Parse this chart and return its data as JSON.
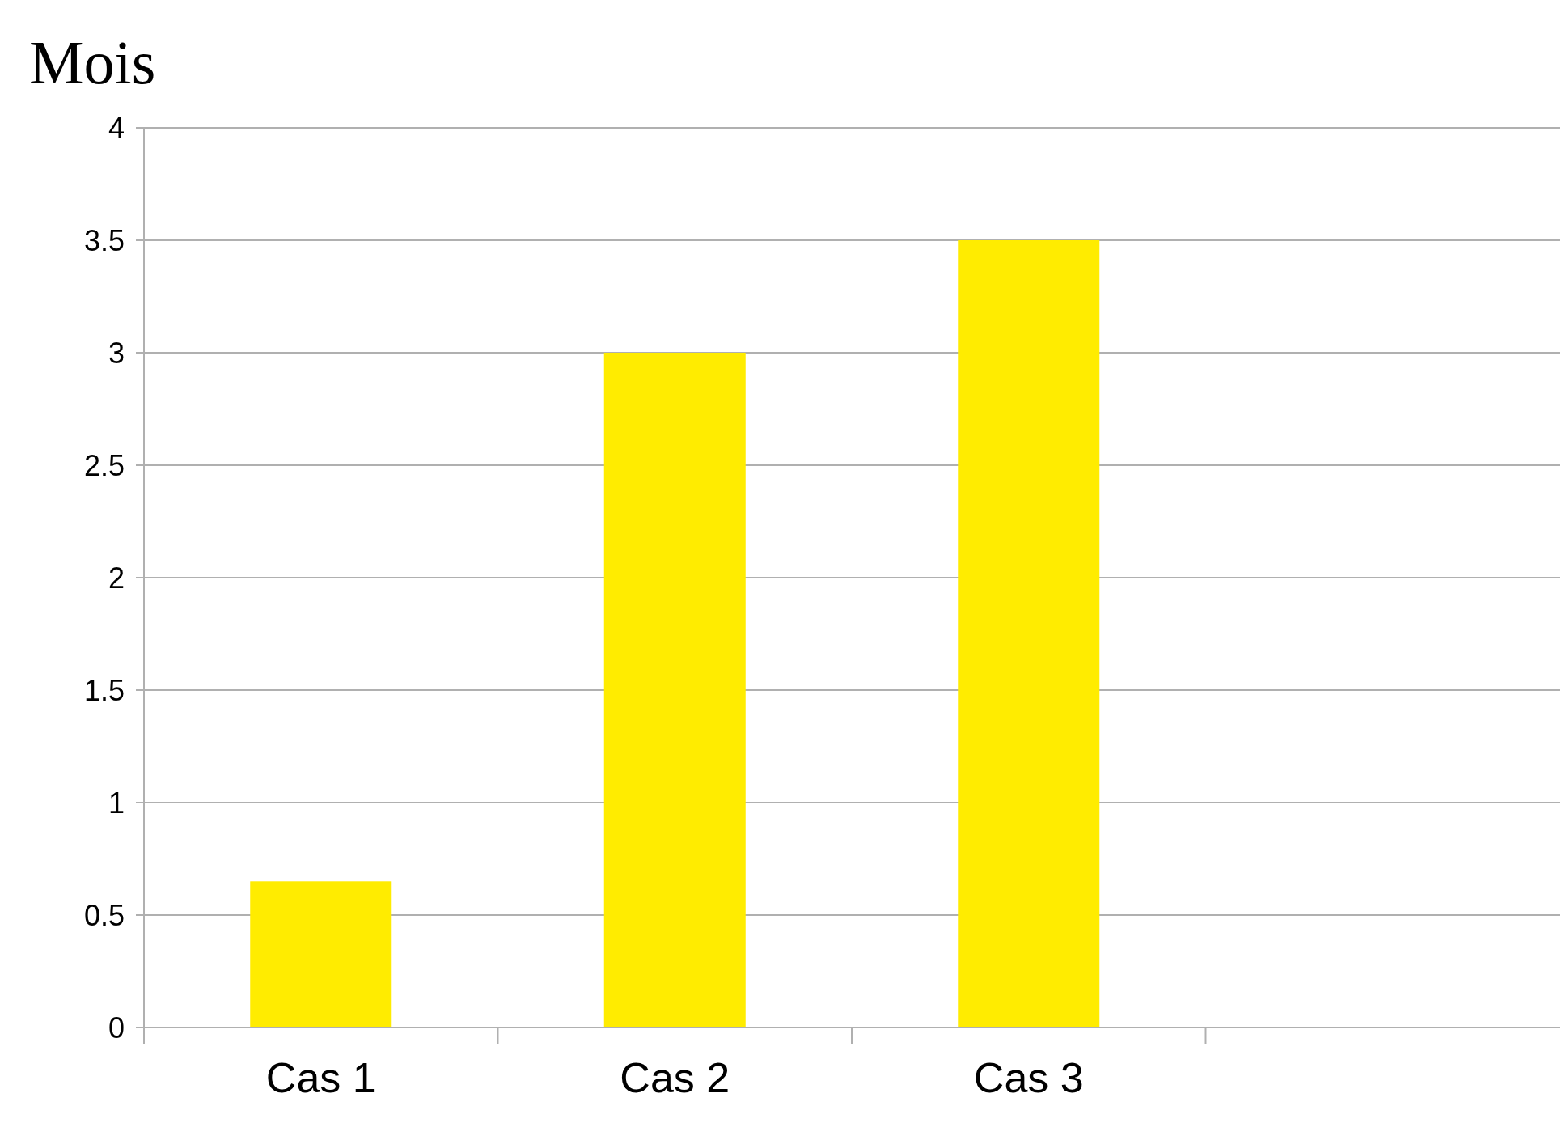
{
  "chart_data": {
    "type": "bar",
    "ylabel": "Mois",
    "categories": [
      "Cas 1",
      "Cas 2",
      "Cas 3",
      null
    ],
    "values": [
      0.65,
      3,
      3.5,
      null
    ],
    "color": "#ffec00",
    "ylim": [
      0,
      4
    ],
    "yticks": [
      0,
      0.5,
      1,
      1.5,
      2,
      2.5,
      3,
      3.5,
      4
    ],
    "grid": "y"
  }
}
